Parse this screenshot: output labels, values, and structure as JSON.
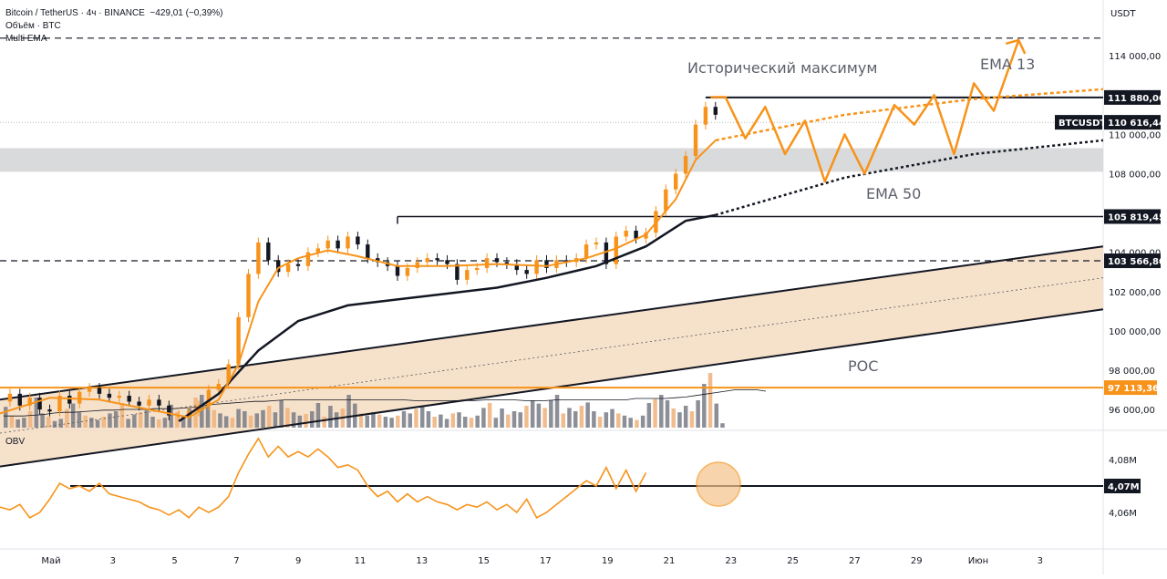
{
  "header": {
    "symbol_line": "Bitcoin / TetherUS · 4ч · BINANCE",
    "change": "−429,01 (−0,39%)",
    "volume_label": "Объём · BTC",
    "ema_label": "Multi EMA",
    "obv_label": "OBV",
    "currency": "USDT"
  },
  "annotations": {
    "ath": "Исторический максимум",
    "ema13": "EMA 13",
    "ema50": "EMA 50",
    "poc": "POC"
  },
  "price_labels": {
    "ath": "111 880,00",
    "symbol": "BTCUSDT",
    "last": "110 616,44",
    "level1": "105 819,45",
    "level2": "103 566,80",
    "poc": "97 113,36",
    "obv": "4,07M"
  },
  "colors": {
    "orange": "#f7931a",
    "black": "#131722",
    "channel_fill": "#f5dcc2",
    "zone_gray": "#d9dadc",
    "volume_gray": "#787b86"
  },
  "chart_data": {
    "type": "candlestick",
    "symbol": "BTCUSDT",
    "timeframe": "4h",
    "price_ticks": [
      "114 000,00",
      "112 000,00",
      "110 000,00",
      "108 000,00",
      "106 000,00",
      "104 000,00",
      "102 000,00",
      "100 000,00",
      "98 000,00",
      "96 000,00"
    ],
    "price_tick_values": [
      114000,
      112000,
      110000,
      108000,
      106000,
      104000,
      102000,
      100000,
      98000,
      96000
    ],
    "obv_ticks": [
      "4,08M",
      "4,06M"
    ],
    "date_ticks": [
      "Май",
      "3",
      "5",
      "7",
      "9",
      "11",
      "13",
      "15",
      "17",
      "19",
      "21",
      "23",
      "25",
      "27",
      "29",
      "Июн",
      "3"
    ],
    "levels": {
      "ath": 111880.0,
      "last": 110616.44,
      "level1": 105819.45,
      "level2": 103566.8,
      "poc": 97113.36,
      "dashed_top": 114900
    },
    "price_series": [
      [
        0,
        96400
      ],
      [
        2,
        96800
      ],
      [
        4,
        96200
      ],
      [
        6,
        96600
      ],
      [
        8,
        96000
      ],
      [
        10,
        95900
      ],
      [
        12,
        96700
      ],
      [
        14,
        96300
      ],
      [
        16,
        96900
      ],
      [
        18,
        97100
      ],
      [
        20,
        96800
      ],
      [
        22,
        96600
      ],
      [
        24,
        96700
      ],
      [
        26,
        96400
      ],
      [
        28,
        96200
      ],
      [
        30,
        96500
      ],
      [
        32,
        96200
      ],
      [
        34,
        95700
      ],
      [
        36,
        95700
      ],
      [
        38,
        95900
      ],
      [
        40,
        96200
      ],
      [
        42,
        97000
      ],
      [
        44,
        97300
      ],
      [
        46,
        98300
      ],
      [
        48,
        100700
      ],
      [
        50,
        102900
      ],
      [
        52,
        104500
      ],
      [
        54,
        103600
      ],
      [
        56,
        103000
      ],
      [
        58,
        103400
      ],
      [
        60,
        103300
      ],
      [
        62,
        104000
      ],
      [
        64,
        104200
      ],
      [
        66,
        104600
      ],
      [
        68,
        104200
      ],
      [
        70,
        104800
      ],
      [
        72,
        104400
      ],
      [
        74,
        103700
      ],
      [
        76,
        103500
      ],
      [
        78,
        103300
      ],
      [
        80,
        102800
      ],
      [
        82,
        103200
      ],
      [
        84,
        103500
      ],
      [
        86,
        103700
      ],
      [
        88,
        103600
      ],
      [
        90,
        103400
      ],
      [
        92,
        102600
      ],
      [
        94,
        103100
      ],
      [
        96,
        103200
      ],
      [
        98,
        103700
      ],
      [
        100,
        103500
      ],
      [
        102,
        103400
      ],
      [
        104,
        103100
      ],
      [
        106,
        102900
      ],
      [
        108,
        103600
      ],
      [
        110,
        103200
      ],
      [
        112,
        103600
      ],
      [
        114,
        103500
      ],
      [
        116,
        103700
      ],
      [
        118,
        104400
      ],
      [
        120,
        104500
      ],
      [
        122,
        103400
      ],
      [
        124,
        104800
      ],
      [
        126,
        105100
      ],
      [
        128,
        104700
      ],
      [
        130,
        105000
      ],
      [
        132,
        106100
      ],
      [
        134,
        107200
      ],
      [
        136,
        108000
      ],
      [
        138,
        108900
      ],
      [
        140,
        110500
      ],
      [
        142,
        111400
      ],
      [
        144,
        111000
      ]
    ],
    "ema13": [
      [
        0,
        95800
      ],
      [
        10,
        96600
      ],
      [
        20,
        96500
      ],
      [
        30,
        96000
      ],
      [
        38,
        95600
      ],
      [
        44,
        96500
      ],
      [
        48,
        98300
      ],
      [
        52,
        101500
      ],
      [
        56,
        103200
      ],
      [
        60,
        103700
      ],
      [
        66,
        104100
      ],
      [
        72,
        103800
      ],
      [
        80,
        103300
      ],
      [
        90,
        103300
      ],
      [
        100,
        103400
      ],
      [
        110,
        103300
      ],
      [
        118,
        103700
      ],
      [
        124,
        104200
      ],
      [
        130,
        104900
      ],
      [
        136,
        106700
      ],
      [
        140,
        108700
      ],
      [
        144,
        109700
      ]
    ],
    "ema13_projection": [
      [
        144,
        109700
      ],
      [
        170,
        111000
      ],
      [
        196,
        111800
      ],
      [
        222,
        112300
      ]
    ],
    "ema50": [
      [
        36,
        95400
      ],
      [
        44,
        96800
      ],
      [
        52,
        99000
      ],
      [
        60,
        100500
      ],
      [
        70,
        101300
      ],
      [
        80,
        101600
      ],
      [
        90,
        101900
      ],
      [
        100,
        102200
      ],
      [
        110,
        102700
      ],
      [
        120,
        103300
      ],
      [
        130,
        104300
      ],
      [
        138,
        105600
      ],
      [
        144,
        105900
      ]
    ],
    "ema50_projection": [
      [
        144,
        105900
      ],
      [
        170,
        107800
      ],
      [
        196,
        109000
      ],
      [
        222,
        109700
      ]
    ],
    "zigzag_projection": [
      [
        143,
        111900
      ],
      [
        146,
        111900
      ],
      [
        150,
        109800
      ],
      [
        154,
        111400
      ],
      [
        158,
        109000
      ],
      [
        162,
        110700
      ],
      [
        166,
        107600
      ],
      [
        170,
        110000
      ],
      [
        174,
        108000
      ],
      [
        180,
        111500
      ],
      [
        184,
        110500
      ],
      [
        188,
        112000
      ],
      [
        192,
        109000
      ],
      [
        196,
        112600
      ],
      [
        200,
        111200
      ],
      [
        205,
        114800
      ]
    ],
    "channel": {
      "upper": [
        [
          0,
          96500
        ],
        [
          222,
          104300
        ]
      ],
      "lower": [
        [
          0,
          93100
        ],
        [
          222,
          101100
        ]
      ],
      "mid": [
        [
          0,
          94800
        ],
        [
          222,
          102700
        ]
      ]
    },
    "gray_zone": [
      108100,
      109300
    ],
    "volume": [
      38,
      22,
      15,
      18,
      30,
      55,
      26,
      20,
      12,
      16,
      34,
      44,
      28,
      22,
      18,
      14,
      20,
      26,
      30,
      45,
      16,
      24,
      28,
      33,
      20,
      15,
      18,
      42,
      29,
      22,
      35,
      55,
      60,
      48,
      32,
      26,
      21,
      18,
      34,
      30,
      22,
      26,
      32,
      40,
      28,
      50,
      36,
      28,
      22,
      25,
      30,
      45,
      20,
      40,
      28,
      35,
      60,
      44,
      26,
      22,
      28,
      24,
      20,
      18,
      22,
      30,
      26,
      34,
      40,
      30,
      20,
      24,
      16,
      26,
      28,
      20,
      18,
      22,
      36,
      45,
      18,
      35,
      24,
      30,
      28,
      40,
      50,
      44,
      36,
      50,
      60,
      26,
      36,
      30,
      40,
      46,
      30,
      20,
      28,
      34,
      26,
      22,
      18,
      14,
      22,
      45,
      52,
      60,
      50,
      35,
      28,
      40,
      30,
      50,
      80,
      100,
      44,
      8
    ],
    "volume_ma": [
      16,
      16,
      16,
      17,
      18,
      20,
      21,
      21,
      22,
      23,
      24,
      24,
      25,
      25,
      25,
      26,
      26,
      26,
      27,
      28,
      30,
      32,
      33,
      34,
      35,
      36,
      36,
      37,
      38,
      38,
      38,
      38,
      38,
      38,
      38,
      38,
      38,
      38,
      38,
      38,
      38,
      37,
      37,
      37,
      37,
      37,
      37,
      37,
      38,
      38,
      38,
      38,
      37,
      37,
      37,
      38,
      38,
      38,
      38,
      38,
      38,
      38,
      38,
      40,
      40,
      40,
      40,
      41,
      42,
      44,
      46,
      48,
      50,
      52,
      52,
      52,
      50
    ],
    "obv": [
      [
        0,
        4.062
      ],
      [
        2,
        4.061
      ],
      [
        4,
        4.063
      ],
      [
        6,
        4.058
      ],
      [
        8,
        4.06
      ],
      [
        10,
        4.065
      ],
      [
        12,
        4.071
      ],
      [
        14,
        4.069
      ],
      [
        16,
        4.07
      ],
      [
        18,
        4.068
      ],
      [
        20,
        4.071
      ],
      [
        22,
        4.067
      ],
      [
        24,
        4.066
      ],
      [
        26,
        4.065
      ],
      [
        28,
        4.064
      ],
      [
        30,
        4.062
      ],
      [
        32,
        4.061
      ],
      [
        34,
        4.059
      ],
      [
        36,
        4.061
      ],
      [
        38,
        4.058
      ],
      [
        40,
        4.062
      ],
      [
        42,
        4.06
      ],
      [
        44,
        4.062
      ],
      [
        46,
        4.066
      ],
      [
        48,
        4.075
      ],
      [
        50,
        4.082
      ],
      [
        52,
        4.088
      ],
      [
        54,
        4.081
      ],
      [
        56,
        4.085
      ],
      [
        58,
        4.081
      ],
      [
        60,
        4.083
      ],
      [
        62,
        4.081
      ],
      [
        64,
        4.084
      ],
      [
        66,
        4.081
      ],
      [
        68,
        4.077
      ],
      [
        70,
        4.078
      ],
      [
        72,
        4.076
      ],
      [
        74,
        4.07
      ],
      [
        76,
        4.066
      ],
      [
        78,
        4.068
      ],
      [
        80,
        4.064
      ],
      [
        82,
        4.067
      ],
      [
        84,
        4.064
      ],
      [
        86,
        4.066
      ],
      [
        88,
        4.064
      ],
      [
        90,
        4.063
      ],
      [
        92,
        4.061
      ],
      [
        94,
        4.063
      ],
      [
        96,
        4.062
      ],
      [
        98,
        4.064
      ],
      [
        100,
        4.061
      ],
      [
        102,
        4.063
      ],
      [
        104,
        4.06
      ],
      [
        106,
        4.065
      ],
      [
        108,
        4.058
      ],
      [
        110,
        4.06
      ],
      [
        112,
        4.063
      ],
      [
        114,
        4.066
      ],
      [
        116,
        4.069
      ],
      [
        118,
        4.072
      ],
      [
        120,
        4.07
      ],
      [
        122,
        4.077
      ],
      [
        124,
        4.069
      ],
      [
        126,
        4.076
      ],
      [
        128,
        4.068
      ],
      [
        130,
        4.075
      ]
    ],
    "obv_level": 4.07
  }
}
